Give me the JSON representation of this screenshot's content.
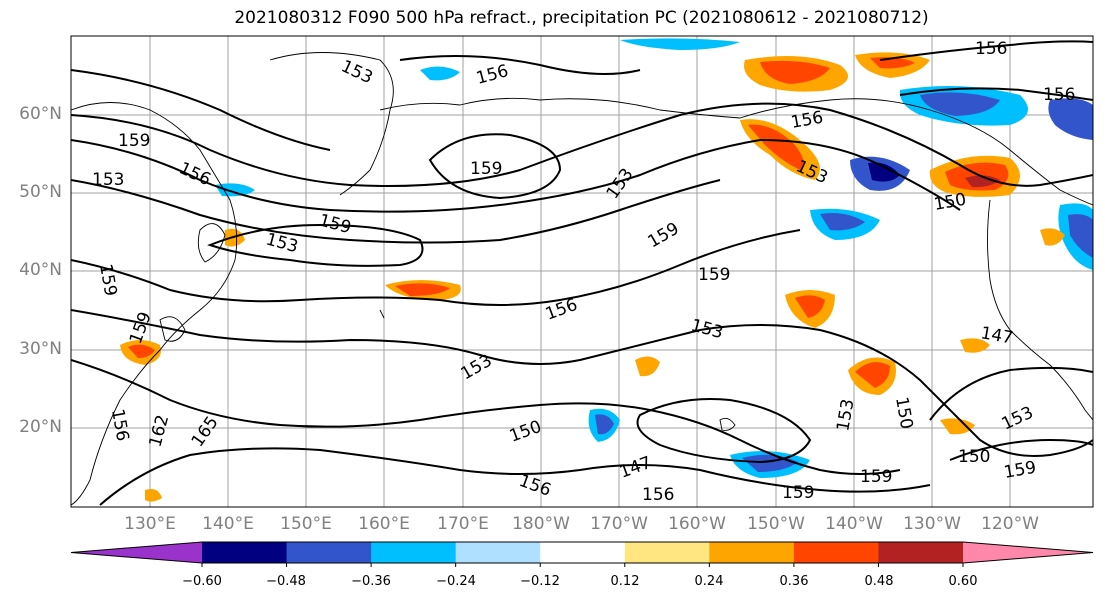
{
  "title": "2021080312 F090 500 hPa refract., precipitation PC (2021080612 - 2021080712)",
  "lat_labels": [
    "60°N",
    "50°N",
    "40°N",
    "30°N",
    "20°N"
  ],
  "lon_labels": [
    "130°E",
    "140°E",
    "150°E",
    "160°E",
    "170°E",
    "180°W",
    "170°W",
    "160°W",
    "150°W",
    "140°W",
    "130°W",
    "120°W"
  ],
  "contour_labels": [
    "153",
    "156",
    "159",
    "162",
    "165",
    "150",
    "147"
  ],
  "colorbar": {
    "colors": [
      "#9933cc",
      "#000080",
      "#3355cc",
      "#00bfff",
      "#b0e0ff",
      "#ffffff",
      "#ffe680",
      "#ffa500",
      "#ff4500",
      "#b22222",
      "#ff88aa"
    ],
    "tick_labels": [
      "−0.60",
      "−0.48",
      "−0.36",
      "−0.24",
      "−0.12",
      "0.12",
      "0.24",
      "0.36",
      "0.48",
      "0.60"
    ]
  }
}
